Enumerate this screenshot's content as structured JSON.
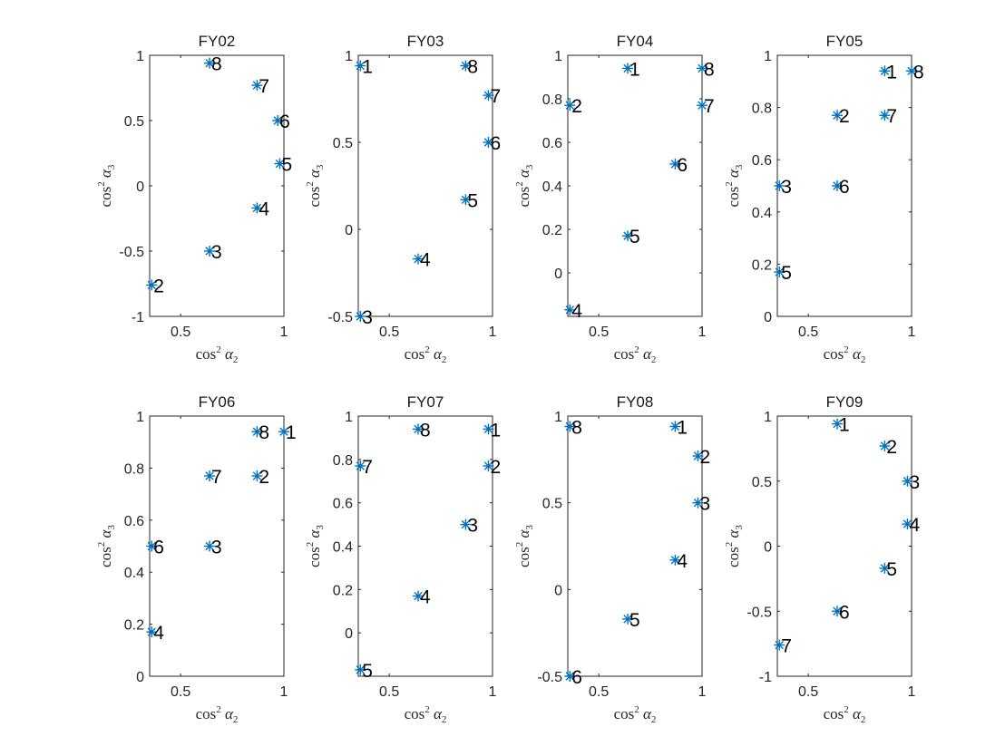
{
  "figure": {
    "xlabel": "cos² α₂",
    "ylabel": "cos² α₃"
  },
  "chart_data": [
    {
      "type": "scatter",
      "title": "FY02",
      "xlabel": "cos² α₂",
      "ylabel": "cos² α₃",
      "xlim": [
        0.35,
        1.0
      ],
      "ylim": [
        -1,
        1
      ],
      "xticks": [
        0.5,
        1
      ],
      "xtick_labels": [
        "0.5",
        "1"
      ],
      "yticks": [
        -1,
        -0.5,
        0,
        0.5,
        1
      ],
      "ytick_labels": [
        "-1",
        "-0.5",
        "0",
        "0.5",
        "1"
      ],
      "points": [
        {
          "label": "2",
          "x": 0.36,
          "y": -0.76
        },
        {
          "label": "3",
          "x": 0.64,
          "y": -0.5
        },
        {
          "label": "4",
          "x": 0.87,
          "y": -0.17
        },
        {
          "label": "5",
          "x": 0.98,
          "y": 0.17
        },
        {
          "label": "6",
          "x": 0.97,
          "y": 0.5
        },
        {
          "label": "7",
          "x": 0.87,
          "y": 0.77
        },
        {
          "label": "8",
          "x": 0.64,
          "y": 0.94
        }
      ]
    },
    {
      "type": "scatter",
      "title": "FY03",
      "xlabel": "cos² α₂",
      "ylabel": "cos² α₃",
      "xlim": [
        0.35,
        1.0
      ],
      "ylim": [
        -0.5,
        1
      ],
      "xticks": [
        0.5,
        1
      ],
      "xtick_labels": [
        "0.5",
        "1"
      ],
      "yticks": [
        -0.5,
        0,
        0.5,
        1
      ],
      "ytick_labels": [
        "-0.5",
        "0",
        "0.5",
        "1"
      ],
      "points": [
        {
          "label": "1",
          "x": 0.36,
          "y": 0.94
        },
        {
          "label": "3",
          "x": 0.36,
          "y": -0.5
        },
        {
          "label": "4",
          "x": 0.64,
          "y": -0.17
        },
        {
          "label": "5",
          "x": 0.87,
          "y": 0.17
        },
        {
          "label": "6",
          "x": 0.98,
          "y": 0.5
        },
        {
          "label": "7",
          "x": 0.98,
          "y": 0.77
        },
        {
          "label": "8",
          "x": 0.87,
          "y": 0.94
        }
      ]
    },
    {
      "type": "scatter",
      "title": "FY04",
      "xlabel": "cos² α₂",
      "ylabel": "cos² α₃",
      "xlim": [
        0.35,
        1.0
      ],
      "ylim": [
        -0.2,
        1
      ],
      "xticks": [
        0.5,
        1
      ],
      "xtick_labels": [
        "0.5",
        "1"
      ],
      "yticks": [
        0,
        0.2,
        0.4,
        0.6,
        0.8,
        1
      ],
      "ytick_labels": [
        "0",
        "0.2",
        "0.4",
        "0.6",
        "0.8",
        "1"
      ],
      "points": [
        {
          "label": "1",
          "x": 0.64,
          "y": 0.94
        },
        {
          "label": "2",
          "x": 0.36,
          "y": 0.77
        },
        {
          "label": "4",
          "x": 0.36,
          "y": -0.17
        },
        {
          "label": "5",
          "x": 0.64,
          "y": 0.17
        },
        {
          "label": "6",
          "x": 0.87,
          "y": 0.5
        },
        {
          "label": "7",
          "x": 1.0,
          "y": 0.77
        },
        {
          "label": "8",
          "x": 1.0,
          "y": 0.94
        }
      ]
    },
    {
      "type": "scatter",
      "title": "FY05",
      "xlabel": "cos² α₂",
      "ylabel": "cos² α₃",
      "xlim": [
        0.35,
        1.0
      ],
      "ylim": [
        0,
        1
      ],
      "xticks": [
        0.5,
        1
      ],
      "xtick_labels": [
        "0.5",
        "1"
      ],
      "yticks": [
        0,
        0.2,
        0.4,
        0.6,
        0.8,
        1
      ],
      "ytick_labels": [
        "0",
        "0.2",
        "0.4",
        "0.6",
        "0.8",
        "1"
      ],
      "points": [
        {
          "label": "1",
          "x": 0.87,
          "y": 0.94
        },
        {
          "label": "2",
          "x": 0.64,
          "y": 0.77
        },
        {
          "label": "3",
          "x": 0.36,
          "y": 0.5
        },
        {
          "label": "5",
          "x": 0.36,
          "y": 0.17
        },
        {
          "label": "6",
          "x": 0.64,
          "y": 0.5
        },
        {
          "label": "7",
          "x": 0.87,
          "y": 0.77
        },
        {
          "label": "8",
          "x": 1.0,
          "y": 0.94
        }
      ]
    },
    {
      "type": "scatter",
      "title": "FY06",
      "xlabel": "cos² α₂",
      "ylabel": "cos² α₃",
      "xlim": [
        0.35,
        1.0
      ],
      "ylim": [
        0,
        1
      ],
      "xticks": [
        0.5,
        1
      ],
      "xtick_labels": [
        "0.5",
        "1"
      ],
      "yticks": [
        0,
        0.2,
        0.4,
        0.6,
        0.8,
        1
      ],
      "ytick_labels": [
        "0",
        "0.2",
        "0.4",
        "0.6",
        "0.8",
        "1"
      ],
      "points": [
        {
          "label": "1",
          "x": 1.0,
          "y": 0.94
        },
        {
          "label": "2",
          "x": 0.87,
          "y": 0.77
        },
        {
          "label": "3",
          "x": 0.64,
          "y": 0.5
        },
        {
          "label": "4",
          "x": 0.36,
          "y": 0.17
        },
        {
          "label": "6",
          "x": 0.36,
          "y": 0.5
        },
        {
          "label": "7",
          "x": 0.64,
          "y": 0.77
        },
        {
          "label": "8",
          "x": 0.87,
          "y": 0.94
        }
      ]
    },
    {
      "type": "scatter",
      "title": "FY07",
      "xlabel": "cos² α₂",
      "ylabel": "cos² α₃",
      "xlim": [
        0.35,
        1.0
      ],
      "ylim": [
        -0.2,
        1
      ],
      "xticks": [
        0.5,
        1
      ],
      "xtick_labels": [
        "0.5",
        "1"
      ],
      "yticks": [
        0,
        0.2,
        0.4,
        0.6,
        0.8,
        1
      ],
      "ytick_labels": [
        "0",
        "0.2",
        "0.4",
        "0.6",
        "0.8",
        "1"
      ],
      "points": [
        {
          "label": "1",
          "x": 0.98,
          "y": 0.94
        },
        {
          "label": "2",
          "x": 0.98,
          "y": 0.77
        },
        {
          "label": "3",
          "x": 0.87,
          "y": 0.5
        },
        {
          "label": "4",
          "x": 0.64,
          "y": 0.17
        },
        {
          "label": "5",
          "x": 0.36,
          "y": -0.17
        },
        {
          "label": "7",
          "x": 0.36,
          "y": 0.77
        },
        {
          "label": "8",
          "x": 0.64,
          "y": 0.94
        }
      ]
    },
    {
      "type": "scatter",
      "title": "FY08",
      "xlabel": "cos² α₂",
      "ylabel": "cos² α₃",
      "xlim": [
        0.35,
        1.0
      ],
      "ylim": [
        -0.5,
        1
      ],
      "xticks": [
        0.5,
        1
      ],
      "xtick_labels": [
        "0.5",
        "1"
      ],
      "yticks": [
        -0.5,
        0,
        0.5,
        1
      ],
      "ytick_labels": [
        "-0.5",
        "0",
        "0.5",
        "1"
      ],
      "points": [
        {
          "label": "1",
          "x": 0.87,
          "y": 0.94
        },
        {
          "label": "2",
          "x": 0.98,
          "y": 0.77
        },
        {
          "label": "3",
          "x": 0.98,
          "y": 0.5
        },
        {
          "label": "4",
          "x": 0.87,
          "y": 0.17
        },
        {
          "label": "5",
          "x": 0.64,
          "y": -0.17
        },
        {
          "label": "6",
          "x": 0.36,
          "y": -0.5
        },
        {
          "label": "8",
          "x": 0.36,
          "y": 0.94
        }
      ]
    },
    {
      "type": "scatter",
      "title": "FY09",
      "xlabel": "cos² α₂",
      "ylabel": "cos² α₃",
      "xlim": [
        0.35,
        1.0
      ],
      "ylim": [
        -1,
        1
      ],
      "xticks": [
        0.5,
        1
      ],
      "xtick_labels": [
        "0.5",
        "1"
      ],
      "yticks": [
        -1,
        -0.5,
        0,
        0.5,
        1
      ],
      "ytick_labels": [
        "-1",
        "-0.5",
        "0",
        "0.5",
        "1"
      ],
      "points": [
        {
          "label": "1",
          "x": 0.64,
          "y": 0.94
        },
        {
          "label": "2",
          "x": 0.87,
          "y": 0.77
        },
        {
          "label": "3",
          "x": 0.98,
          "y": 0.5
        },
        {
          "label": "4",
          "x": 0.98,
          "y": 0.17
        },
        {
          "label": "5",
          "x": 0.87,
          "y": -0.17
        },
        {
          "label": "6",
          "x": 0.64,
          "y": -0.5
        },
        {
          "label": "7",
          "x": 0.36,
          "y": -0.76
        }
      ]
    }
  ]
}
